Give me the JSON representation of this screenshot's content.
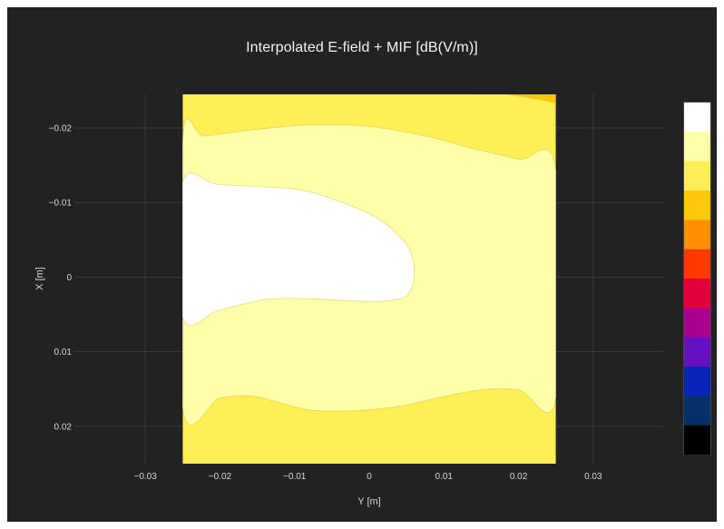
{
  "chart_data": {
    "type": "contour",
    "title": "Interpolated E-field + MIF [dB(V/m)]",
    "xlabel": "Y [m]",
    "ylabel": "X [m]",
    "x_ticks": [
      -0.03,
      -0.02,
      -0.01,
      0,
      0.01,
      0.02,
      0.03
    ],
    "x_tick_labels": [
      "−0.03",
      "−0.02",
      "−0.01",
      "0",
      "0.01",
      "0.02",
      "0.03"
    ],
    "y_ticks": [
      -0.02,
      -0.01,
      0,
      0.01,
      0.02
    ],
    "y_tick_labels": [
      "−0.02",
      "−0.01",
      "0",
      "0.01",
      "0.02"
    ],
    "xlim": [
      -0.0395,
      0.0395
    ],
    "ylim": [
      -0.0245,
      0.025
    ],
    "y_axis_reversed": true,
    "data_extent": {
      "y": [
        -0.025,
        0.025
      ],
      "x": [
        -0.025,
        0.025
      ]
    },
    "grid": true,
    "colorbar": {
      "position": "right",
      "colors_top_to_bottom": [
        "#ffffff",
        "#ffffaa",
        "#ffee55",
        "#ffc80a",
        "#ff9000",
        "#ff3a00",
        "#e2003c",
        "#aa0090",
        "#6611c0",
        "#0a24b8",
        "#073068",
        "#000000"
      ]
    },
    "regions": [
      {
        "name": "level-top-orange",
        "color": "#ffc80a",
        "outline": [
          [
            0.0135,
            -0.025
          ],
          [
            0.025,
            -0.025
          ],
          [
            0.025,
            -0.0233
          ],
          [
            0.0235,
            -0.0237
          ],
          [
            0.0185,
            -0.0245
          ]
        ]
      },
      {
        "name": "level-light-band",
        "color": "#ffffaa",
        "outline": [
          [
            -0.025,
            -0.0185
          ],
          [
            -0.022,
            -0.0189
          ],
          [
            -0.015,
            -0.0198
          ],
          [
            -0.008,
            -0.0204
          ],
          [
            0,
            -0.0202
          ],
          [
            0.008,
            -0.0188
          ],
          [
            0.014,
            -0.0172
          ],
          [
            0.02,
            -0.0158
          ],
          [
            0.025,
            -0.0145
          ],
          [
            0.025,
            0.0162
          ],
          [
            0.02,
            0.0151
          ],
          [
            0.015,
            0.0151
          ],
          [
            0.01,
            0.016
          ],
          [
            0.004,
            0.0173
          ],
          [
            -0.002,
            0.0179
          ],
          [
            -0.008,
            0.0178
          ],
          [
            -0.012,
            0.0168
          ],
          [
            -0.016,
            0.0159
          ],
          [
            -0.02,
            0.0162
          ],
          [
            -0.025,
            0.0175
          ]
        ]
      },
      {
        "name": "level-white-core",
        "color": "#ffffff",
        "outline": [
          [
            -0.025,
            -0.0127
          ],
          [
            -0.02,
            -0.0124
          ],
          [
            -0.01,
            -0.0118
          ],
          [
            -0.005,
            -0.0105
          ],
          [
            0,
            -0.0085
          ],
          [
            0.003,
            -0.0065
          ],
          [
            0.0055,
            -0.0035
          ],
          [
            0.006,
            0
          ],
          [
            0.005,
            0.0025
          ],
          [
            0.002,
            0.0032
          ],
          [
            -0.002,
            0.0032
          ],
          [
            -0.008,
            0.0029
          ],
          [
            -0.014,
            0.003
          ],
          [
            -0.02,
            0.0044
          ],
          [
            -0.025,
            0.0054
          ]
        ]
      }
    ],
    "background_region": {
      "name": "level-yellow",
      "color": "#ffee55"
    }
  }
}
